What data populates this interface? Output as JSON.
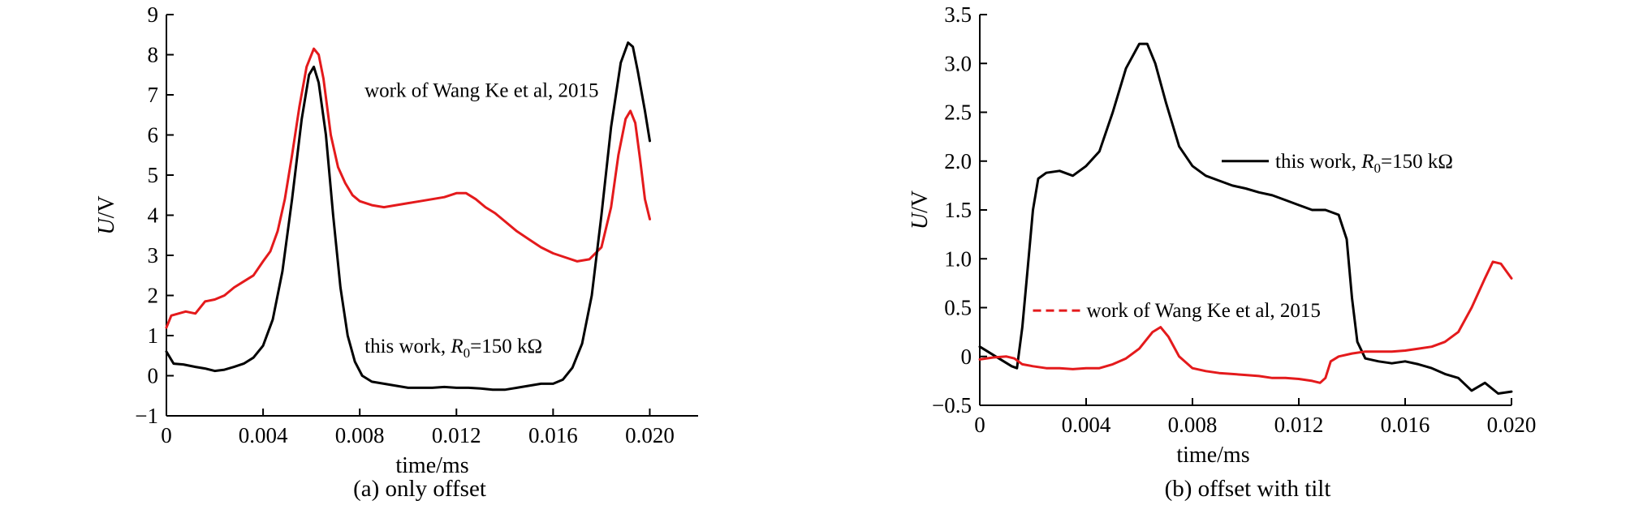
{
  "chart_data": [
    {
      "type": "line",
      "caption": "(a) only offset",
      "xlabel": "time/ms",
      "ylabel_italic": "U",
      "ylabel_rest": "/V",
      "xlim": [
        0,
        0.022
      ],
      "ylim": [
        -1,
        9
      ],
      "xticks": [
        0,
        0.004,
        0.008,
        0.012,
        0.016,
        0.02
      ],
      "xtick_labels": [
        "0",
        "0.004",
        "0.008",
        "0.012",
        "0.016",
        "0.020"
      ],
      "yticks": [
        -1,
        0,
        1,
        2,
        3,
        4,
        5,
        6,
        7,
        8,
        9
      ],
      "ytick_labels": [
        "−1",
        "0",
        "1",
        "2",
        "3",
        "4",
        "5",
        "6",
        "7",
        "8",
        "9"
      ],
      "annotations": [
        {
          "text": "work of Wang Ke et al, 2015",
          "x": 0.0082,
          "y": 6.95
        },
        {
          "pre": "this work, ",
          "italic": "R",
          "sub": "0",
          "post": "=150 kΩ",
          "x": 0.0082,
          "y": 0.58
        }
      ],
      "series": [
        {
          "color": "#e41a1c",
          "style": "solid",
          "points": [
            [
              0.0,
              1.2
            ],
            [
              0.0002,
              1.5
            ],
            [
              0.0005,
              1.55
            ],
            [
              0.0008,
              1.6
            ],
            [
              0.0012,
              1.55
            ],
            [
              0.0016,
              1.85
            ],
            [
              0.002,
              1.9
            ],
            [
              0.0024,
              2.0
            ],
            [
              0.0028,
              2.2
            ],
            [
              0.0032,
              2.35
            ],
            [
              0.0036,
              2.5
            ],
            [
              0.004,
              2.85
            ],
            [
              0.0043,
              3.1
            ],
            [
              0.0046,
              3.6
            ],
            [
              0.0049,
              4.4
            ],
            [
              0.0052,
              5.5
            ],
            [
              0.0055,
              6.7
            ],
            [
              0.0058,
              7.7
            ],
            [
              0.0061,
              8.15
            ],
            [
              0.0063,
              8.0
            ],
            [
              0.0065,
              7.4
            ],
            [
              0.0068,
              6.0
            ],
            [
              0.0071,
              5.2
            ],
            [
              0.0074,
              4.8
            ],
            [
              0.0077,
              4.5
            ],
            [
              0.008,
              4.35
            ],
            [
              0.0085,
              4.25
            ],
            [
              0.009,
              4.2
            ],
            [
              0.0095,
              4.25
            ],
            [
              0.01,
              4.3
            ],
            [
              0.0105,
              4.35
            ],
            [
              0.011,
              4.4
            ],
            [
              0.0115,
              4.45
            ],
            [
              0.012,
              4.55
            ],
            [
              0.0124,
              4.55
            ],
            [
              0.0128,
              4.4
            ],
            [
              0.0132,
              4.2
            ],
            [
              0.0136,
              4.05
            ],
            [
              0.014,
              3.85
            ],
            [
              0.0145,
              3.6
            ],
            [
              0.015,
              3.4
            ],
            [
              0.0155,
              3.2
            ],
            [
              0.016,
              3.05
            ],
            [
              0.0165,
              2.95
            ],
            [
              0.017,
              2.85
            ],
            [
              0.0175,
              2.9
            ],
            [
              0.018,
              3.2
            ],
            [
              0.0184,
              4.2
            ],
            [
              0.0187,
              5.5
            ],
            [
              0.019,
              6.4
            ],
            [
              0.0192,
              6.6
            ],
            [
              0.0194,
              6.3
            ],
            [
              0.0196,
              5.4
            ],
            [
              0.0198,
              4.4
            ],
            [
              0.02,
              3.9
            ]
          ]
        },
        {
          "color": "#000000",
          "style": "solid",
          "points": [
            [
              0.0,
              0.6
            ],
            [
              0.0003,
              0.3
            ],
            [
              0.0007,
              0.28
            ],
            [
              0.0012,
              0.22
            ],
            [
              0.0016,
              0.18
            ],
            [
              0.002,
              0.12
            ],
            [
              0.0024,
              0.15
            ],
            [
              0.0028,
              0.22
            ],
            [
              0.0032,
              0.3
            ],
            [
              0.0036,
              0.45
            ],
            [
              0.004,
              0.75
            ],
            [
              0.0044,
              1.4
            ],
            [
              0.0048,
              2.6
            ],
            [
              0.0052,
              4.4
            ],
            [
              0.0056,
              6.4
            ],
            [
              0.0059,
              7.5
            ],
            [
              0.0061,
              7.7
            ],
            [
              0.0063,
              7.3
            ],
            [
              0.0066,
              6.0
            ],
            [
              0.0069,
              4.0
            ],
            [
              0.0072,
              2.2
            ],
            [
              0.0075,
              1.0
            ],
            [
              0.0078,
              0.35
            ],
            [
              0.0081,
              0.0
            ],
            [
              0.0085,
              -0.15
            ],
            [
              0.009,
              -0.2
            ],
            [
              0.0095,
              -0.25
            ],
            [
              0.01,
              -0.3
            ],
            [
              0.0105,
              -0.3
            ],
            [
              0.011,
              -0.3
            ],
            [
              0.0115,
              -0.28
            ],
            [
              0.012,
              -0.3
            ],
            [
              0.0125,
              -0.3
            ],
            [
              0.013,
              -0.32
            ],
            [
              0.0135,
              -0.35
            ],
            [
              0.014,
              -0.35
            ],
            [
              0.0145,
              -0.3
            ],
            [
              0.015,
              -0.25
            ],
            [
              0.0155,
              -0.2
            ],
            [
              0.016,
              -0.2
            ],
            [
              0.0164,
              -0.1
            ],
            [
              0.0168,
              0.2
            ],
            [
              0.0172,
              0.8
            ],
            [
              0.0176,
              2.0
            ],
            [
              0.018,
              4.0
            ],
            [
              0.0184,
              6.2
            ],
            [
              0.0188,
              7.8
            ],
            [
              0.0191,
              8.3
            ],
            [
              0.0193,
              8.2
            ],
            [
              0.0195,
              7.6
            ],
            [
              0.0198,
              6.6
            ],
            [
              0.02,
              5.85
            ]
          ]
        }
      ]
    },
    {
      "type": "line",
      "caption": "(b) offset with tilt",
      "xlabel": "time/ms",
      "ylabel_italic": "U",
      "ylabel_rest": "/V",
      "xlim": [
        0,
        0.02
      ],
      "ylim": [
        -0.5,
        3.5
      ],
      "xticks": [
        0,
        0.004,
        0.008,
        0.012,
        0.016,
        0.02
      ],
      "xtick_labels": [
        "0",
        "0.004",
        "0.008",
        "0.012",
        "0.016",
        "0.020"
      ],
      "yticks": [
        -0.5,
        0,
        0.5,
        1.0,
        1.5,
        2.0,
        2.5,
        3.0,
        3.5
      ],
      "ytick_labels": [
        "−0.5",
        "0",
        "0.5",
        "1.0",
        "1.5",
        "2.0",
        "2.5",
        "3.0",
        "3.5"
      ],
      "legend": [
        {
          "pre": "this work, ",
          "italic": "R",
          "sub": "0",
          "post": "=150 kΩ",
          "color": "#000000",
          "style": "solid",
          "x": 0.0091,
          "y": 2.0
        },
        {
          "pre": "work of Wang Ke et al, 2015",
          "color": "#e41a1c",
          "style": "dashed",
          "x": 0.002,
          "y": 0.47
        }
      ],
      "series": [
        {
          "color": "#000000",
          "style": "solid",
          "points": [
            [
              0.0,
              0.1
            ],
            [
              0.0003,
              0.05
            ],
            [
              0.0006,
              0.0
            ],
            [
              0.0009,
              -0.05
            ],
            [
              0.0012,
              -0.1
            ],
            [
              0.0014,
              -0.12
            ],
            [
              0.0016,
              0.3
            ],
            [
              0.0018,
              0.9
            ],
            [
              0.002,
              1.5
            ],
            [
              0.0022,
              1.82
            ],
            [
              0.0025,
              1.88
            ],
            [
              0.003,
              1.9
            ],
            [
              0.0035,
              1.85
            ],
            [
              0.004,
              1.95
            ],
            [
              0.0045,
              2.1
            ],
            [
              0.005,
              2.5
            ],
            [
              0.0055,
              2.95
            ],
            [
              0.006,
              3.2
            ],
            [
              0.0063,
              3.2
            ],
            [
              0.0066,
              3.0
            ],
            [
              0.007,
              2.6
            ],
            [
              0.0075,
              2.15
            ],
            [
              0.008,
              1.95
            ],
            [
              0.0085,
              1.85
            ],
            [
              0.009,
              1.8
            ],
            [
              0.0095,
              1.75
            ],
            [
              0.01,
              1.72
            ],
            [
              0.0105,
              1.68
            ],
            [
              0.011,
              1.65
            ],
            [
              0.0115,
              1.6
            ],
            [
              0.012,
              1.55
            ],
            [
              0.0125,
              1.5
            ],
            [
              0.013,
              1.5
            ],
            [
              0.0135,
              1.45
            ],
            [
              0.0138,
              1.2
            ],
            [
              0.014,
              0.6
            ],
            [
              0.0142,
              0.15
            ],
            [
              0.0145,
              -0.02
            ],
            [
              0.015,
              -0.05
            ],
            [
              0.0155,
              -0.07
            ],
            [
              0.016,
              -0.05
            ],
            [
              0.0165,
              -0.08
            ],
            [
              0.017,
              -0.12
            ],
            [
              0.0175,
              -0.18
            ],
            [
              0.018,
              -0.22
            ],
            [
              0.0185,
              -0.35
            ],
            [
              0.019,
              -0.27
            ],
            [
              0.0195,
              -0.38
            ],
            [
              0.02,
              -0.36
            ]
          ]
        },
        {
          "color": "#e41a1c",
          "style": "solid",
          "points": [
            [
              0.0,
              -0.03
            ],
            [
              0.0005,
              -0.01
            ],
            [
              0.001,
              0.0
            ],
            [
              0.0013,
              -0.02
            ],
            [
              0.0016,
              -0.08
            ],
            [
              0.002,
              -0.1
            ],
            [
              0.0025,
              -0.12
            ],
            [
              0.003,
              -0.12
            ],
            [
              0.0035,
              -0.13
            ],
            [
              0.004,
              -0.12
            ],
            [
              0.0045,
              -0.12
            ],
            [
              0.005,
              -0.08
            ],
            [
              0.0055,
              -0.02
            ],
            [
              0.006,
              0.08
            ],
            [
              0.0065,
              0.25
            ],
            [
              0.0068,
              0.3
            ],
            [
              0.0071,
              0.2
            ],
            [
              0.0075,
              0.0
            ],
            [
              0.008,
              -0.12
            ],
            [
              0.0085,
              -0.15
            ],
            [
              0.009,
              -0.17
            ],
            [
              0.0095,
              -0.18
            ],
            [
              0.01,
              -0.19
            ],
            [
              0.0105,
              -0.2
            ],
            [
              0.011,
              -0.22
            ],
            [
              0.0115,
              -0.22
            ],
            [
              0.012,
              -0.23
            ],
            [
              0.0125,
              -0.25
            ],
            [
              0.0128,
              -0.27
            ],
            [
              0.013,
              -0.22
            ],
            [
              0.0132,
              -0.05
            ],
            [
              0.0135,
              0.0
            ],
            [
              0.014,
              0.03
            ],
            [
              0.0145,
              0.05
            ],
            [
              0.015,
              0.05
            ],
            [
              0.0155,
              0.05
            ],
            [
              0.016,
              0.06
            ],
            [
              0.0165,
              0.08
            ],
            [
              0.017,
              0.1
            ],
            [
              0.0175,
              0.15
            ],
            [
              0.018,
              0.25
            ],
            [
              0.0185,
              0.5
            ],
            [
              0.019,
              0.8
            ],
            [
              0.0193,
              0.97
            ],
            [
              0.0196,
              0.95
            ],
            [
              0.02,
              0.8
            ]
          ]
        }
      ]
    }
  ]
}
